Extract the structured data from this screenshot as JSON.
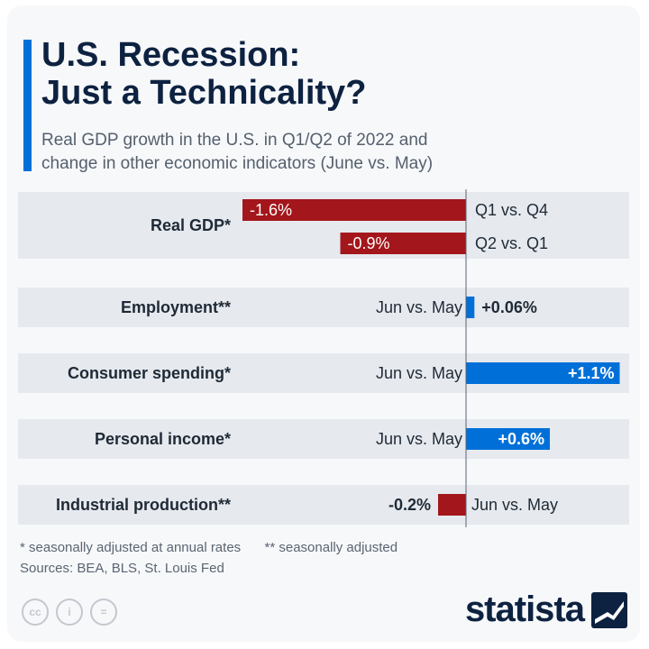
{
  "header": {
    "title_line1": "U.S. Recession:",
    "title_line2": "Just a Technicality?",
    "subtitle_line1": "Real GDP growth in the U.S. in Q1/Q2 of 2022 and",
    "subtitle_line2": "change in other economic indicators (June vs. May)"
  },
  "chart_data": {
    "type": "bar",
    "orientation": "horizontal",
    "title": "U.S. Recession: Just a Technicality?",
    "subtitle": "Real GDP growth in the U.S. in Q1/Q2 of 2022 and change in other economic indicators (June vs. May)",
    "xlim": [
      -1.6,
      1.1
    ],
    "unit": "%",
    "groups": [
      {
        "category": "Real GDP*",
        "bars": [
          {
            "period": "Q1 vs. Q4",
            "value": -1.6,
            "label": "-1.6%"
          },
          {
            "period": "Q2 vs. Q1",
            "value": -0.9,
            "label": "-0.9%"
          }
        ]
      },
      {
        "category": "Employment**",
        "bars": [
          {
            "period": "Jun vs. May",
            "value": 0.06,
            "label": "+0.06%"
          }
        ]
      },
      {
        "category": "Consumer spending*",
        "bars": [
          {
            "period": "Jun vs. May",
            "value": 1.1,
            "label": "+1.1%"
          }
        ]
      },
      {
        "category": "Personal income*",
        "bars": [
          {
            "period": "Jun vs. May",
            "value": 0.6,
            "label": "+0.6%"
          }
        ]
      },
      {
        "category": "Industrial production**",
        "bars": [
          {
            "period": "Jun vs. May",
            "value": -0.2,
            "label": "-0.2%"
          }
        ]
      }
    ],
    "colors": {
      "negative": "#a3161b",
      "positive": "#0070d8",
      "row_band": "#e6e9ee"
    }
  },
  "footer": {
    "note1": "* seasonally adjusted at annual rates",
    "note2": "** seasonally adjusted",
    "sources": "Sources: BEA, BLS, St. Louis Fed",
    "brand": "statista",
    "license_icons": [
      "cc-icon",
      "attribution-icon",
      "no-derivatives-icon"
    ],
    "license_labels": [
      "cc",
      "i",
      "="
    ]
  }
}
